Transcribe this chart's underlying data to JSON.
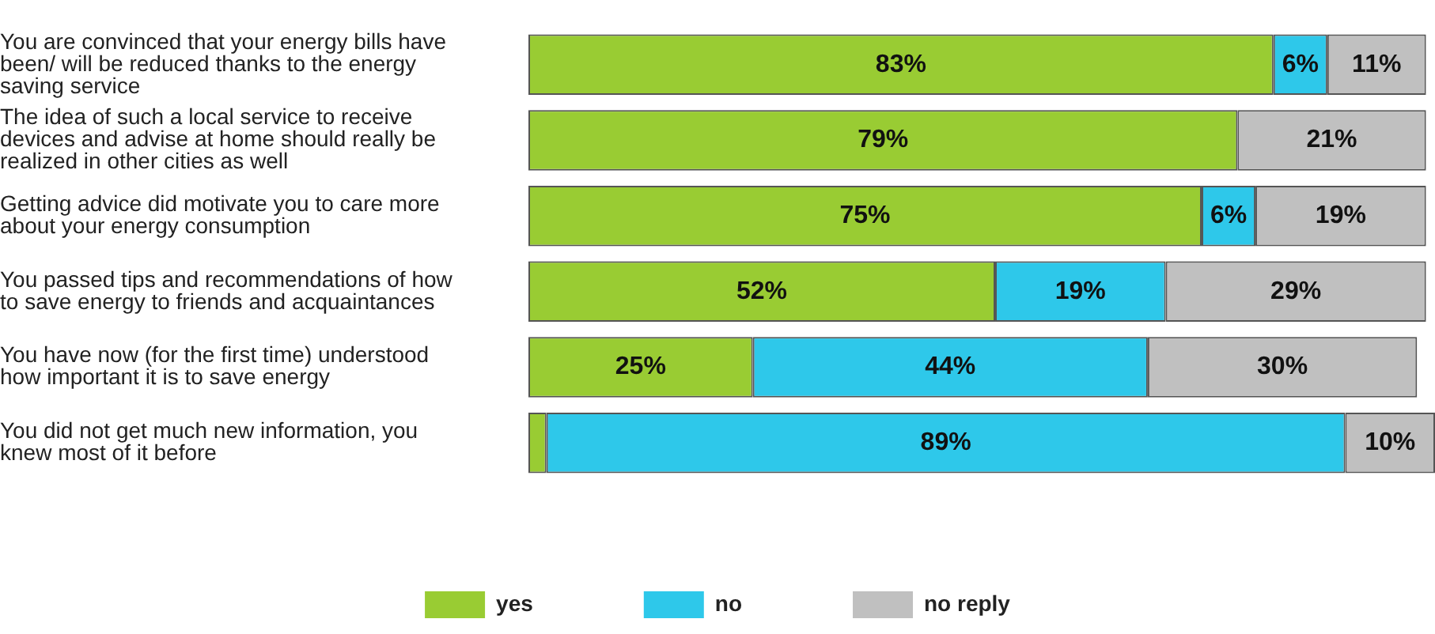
{
  "chart_data": {
    "type": "bar",
    "orientation": "horizontal",
    "stacked": true,
    "legend": "bottom",
    "categories": [
      "You are convinced that your energy bills have been/ will be reduced thanks to the energy saving service",
      "The idea of such a local service to receive devices and advise at home should really be realized in other cities as well",
      "Getting advice did motivate you to care more about your energy consumption",
      "You passed tips and recommendations of how to save energy to friends and acquaintances",
      "You have now (for the first time) understood how important it is to save energy",
      "You did not get much new information, you knew most of it before"
    ],
    "series": [
      {
        "name": "yes",
        "color": "#99cc33",
        "values": [
          83,
          79,
          75,
          52,
          25,
          2
        ],
        "value_labels": [
          "83%",
          "79%",
          "75%",
          "52%",
          "25%",
          null
        ]
      },
      {
        "name": "no",
        "color": "#2ec8ea",
        "values": [
          6,
          null,
          6,
          19,
          44,
          89
        ],
        "value_labels": [
          "6%",
          null,
          "6%",
          "19%",
          "44%",
          "89%"
        ]
      },
      {
        "name": "no reply",
        "color": "#c0c0c0",
        "values": [
          11,
          21,
          19,
          29,
          30,
          10
        ],
        "value_labels": [
          "11%",
          "21%",
          "19%",
          "29%",
          "30%",
          "10%"
        ]
      }
    ]
  }
}
